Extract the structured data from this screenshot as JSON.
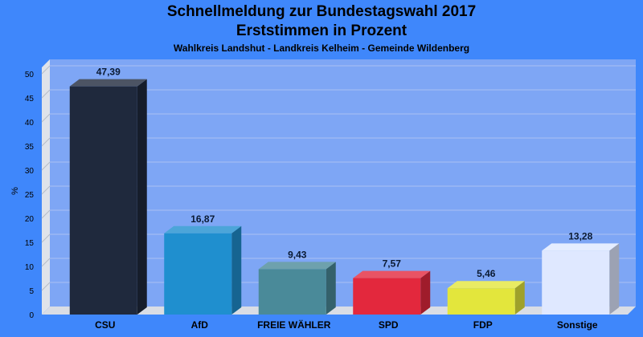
{
  "chart_data": {
    "type": "bar",
    "title": "Schnellmeldung zur Bundestagswahl 2017",
    "subtitle": "Erststimmen in Prozent",
    "subsubtitle": "Wahlkreis Landshut - Landkreis Kelheim - Gemeinde Wildenberg",
    "xlabel": "",
    "ylabel": "%",
    "ylim": [
      0,
      50
    ],
    "yticks": [
      0,
      5,
      10,
      15,
      20,
      25,
      30,
      35,
      40,
      45,
      50
    ],
    "categories": [
      "CSU",
      "AfD",
      "FREIE WÄHLER",
      "SPD",
      "FDP",
      "Sonstige"
    ],
    "values": [
      47.39,
      16.87,
      9.43,
      7.57,
      5.46,
      13.28
    ],
    "value_labels": [
      "47,39",
      "16,87",
      "9,43",
      "7,57",
      "5,46",
      "13,28"
    ],
    "colors": [
      "#1f293d",
      "#1f8fcf",
      "#4a8a99",
      "#e3283d",
      "#e3e63c",
      "#dfe8ff"
    ],
    "grid": true,
    "background_color": "#3f87fb",
    "plot_color": "#7ea6f5"
  }
}
